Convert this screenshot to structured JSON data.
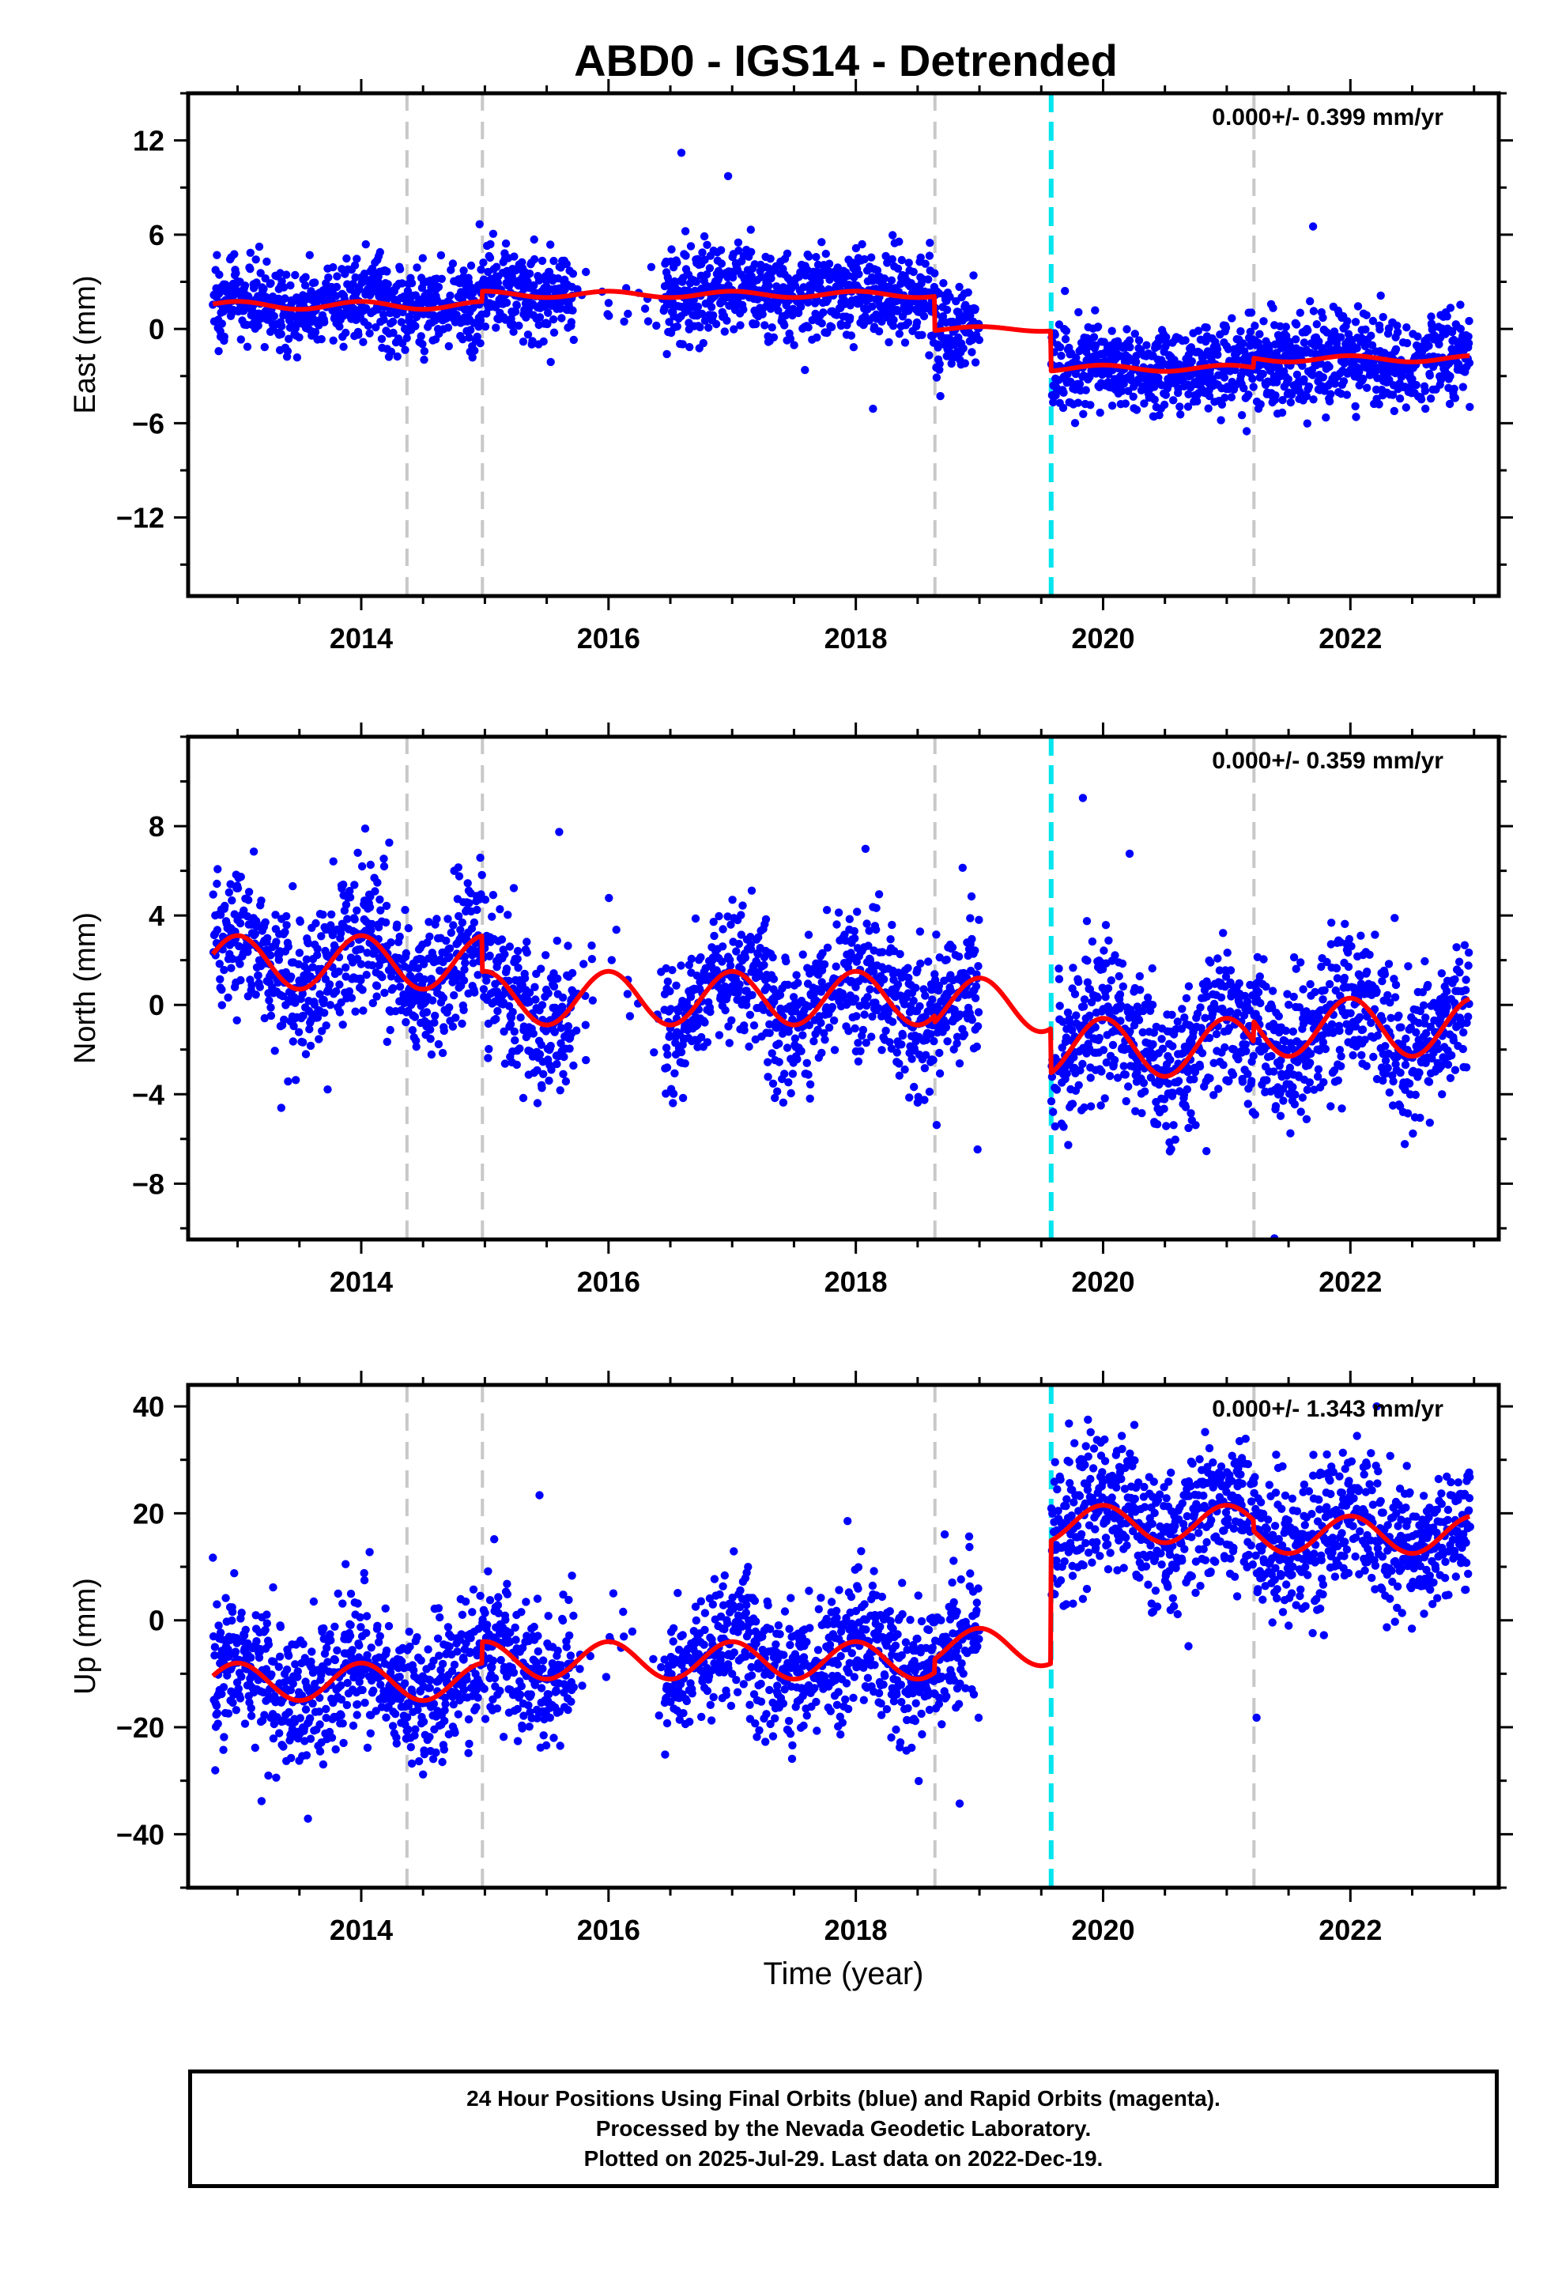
{
  "title": "ABD0 - IGS14 - Detrended",
  "footer": {
    "line1": "24 Hour Positions Using Final Orbits (blue) and Rapid Orbits (magenta).",
    "line2": "Processed by the Nevada Geodetic Laboratory.",
    "line3": "Plotted on 2025-Jul-29. Last data on 2022-Dec-19."
  },
  "colors": {
    "points": "#0000ff",
    "model": "#ff0000",
    "equipment_change": "#c8c8c8",
    "earthquake": "#00e5ee",
    "frame": "#000000"
  },
  "chart_data": [
    {
      "type": "scatter",
      "name": "east",
      "xlabel": "",
      "ylabel": "East (mm)",
      "xlim": [
        2012.6,
        2023.2
      ],
      "ylim": [
        -17,
        15
      ],
      "x_ticks": [
        2014,
        2016,
        2018,
        2020,
        2022
      ],
      "y_ticks": [
        -12,
        -6,
        0,
        6,
        12
      ],
      "velocity_label": "0.000+/- 0.399 mm/yr",
      "gray_lines": [
        2014.37,
        2014.98,
        2018.64,
        2021.22
      ],
      "cyan_lines": [
        2019.58
      ],
      "model": {
        "level": [
          1.5,
          2.2,
          0.0,
          -2.5,
          -1.9
        ],
        "amp": [
          0.25,
          0.2,
          0.15,
          0.2,
          0.2
        ],
        "scatter": 1.4
      },
      "grid": false,
      "legend": "none"
    },
    {
      "type": "scatter",
      "name": "north",
      "xlabel": "",
      "ylabel": "North (mm)",
      "xlim": [
        2012.6,
        2023.2
      ],
      "ylim": [
        -10.5,
        12
      ],
      "x_ticks": [
        2014,
        2016,
        2018,
        2020,
        2022
      ],
      "y_ticks": [
        -8,
        -4,
        0,
        4,
        8
      ],
      "velocity_label": "0.000+/- 0.359 mm/yr",
      "gray_lines": [
        2014.37,
        2014.98,
        2018.64,
        2021.22
      ],
      "cyan_lines": [
        2019.58
      ],
      "model": {
        "level": [
          1.9,
          0.3,
          0.0,
          -1.9,
          -1.0
        ],
        "amp": [
          1.2,
          1.2,
          1.2,
          1.3,
          1.3
        ],
        "scatter": 1.6
      },
      "grid": false,
      "legend": "none"
    },
    {
      "type": "scatter",
      "name": "up",
      "xlabel": "Time (year)",
      "ylabel": "Up (mm)",
      "xlim": [
        2012.6,
        2023.2
      ],
      "ylim": [
        -50,
        44
      ],
      "x_ticks": [
        2014,
        2016,
        2018,
        2020,
        2022
      ],
      "y_ticks": [
        -40,
        -20,
        0,
        20,
        40
      ],
      "velocity_label": "0.000+/- 1.343 mm/yr",
      "gray_lines": [
        2014.37,
        2014.98,
        2018.64,
        2021.22
      ],
      "cyan_lines": [
        2019.58
      ],
      "model": {
        "level": [
          -11.5,
          -7.5,
          -5.0,
          18.0,
          16.0
        ],
        "amp": [
          3.5,
          3.5,
          3.5,
          3.5,
          3.5
        ],
        "scatter": 6.5
      },
      "grid": false,
      "legend": "none"
    }
  ]
}
